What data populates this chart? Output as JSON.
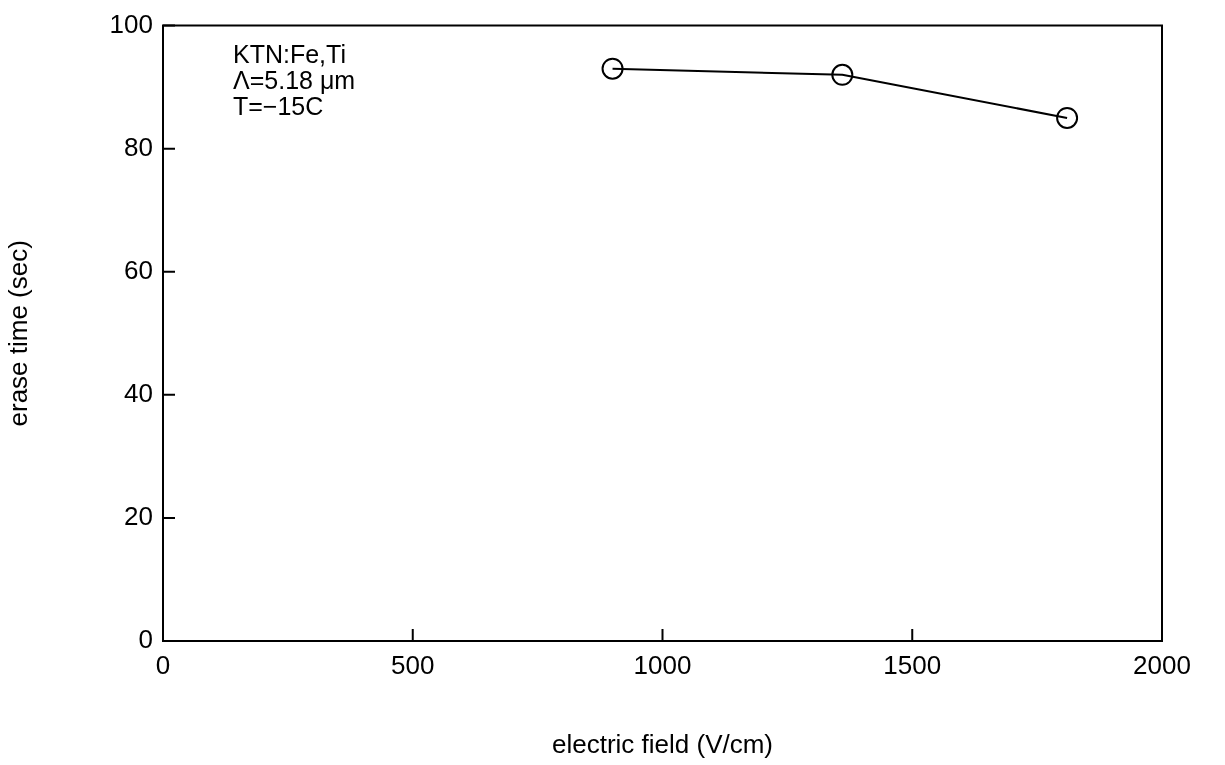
{
  "chart_data": {
    "type": "line",
    "xlabel": "electric field (V/cm)",
    "ylabel": "erase time (sec)",
    "x": [
      900,
      1360,
      1810
    ],
    "series": [
      {
        "color": "#000000",
        "values": [
          93,
          92,
          85
        ]
      }
    ],
    "xlim": [
      0,
      2000
    ],
    "xticks": [
      0,
      500,
      1000,
      1500,
      2000
    ],
    "ylim": [
      0,
      100
    ],
    "yticks": [
      0,
      20,
      40,
      60,
      80,
      100
    ],
    "grid": false,
    "legend": false,
    "marker": "circle",
    "line_style": "solid",
    "annotations": [
      "KTN:Fe,Ti",
      "Λ=5.18 μm",
      "T=−15C"
    ]
  }
}
